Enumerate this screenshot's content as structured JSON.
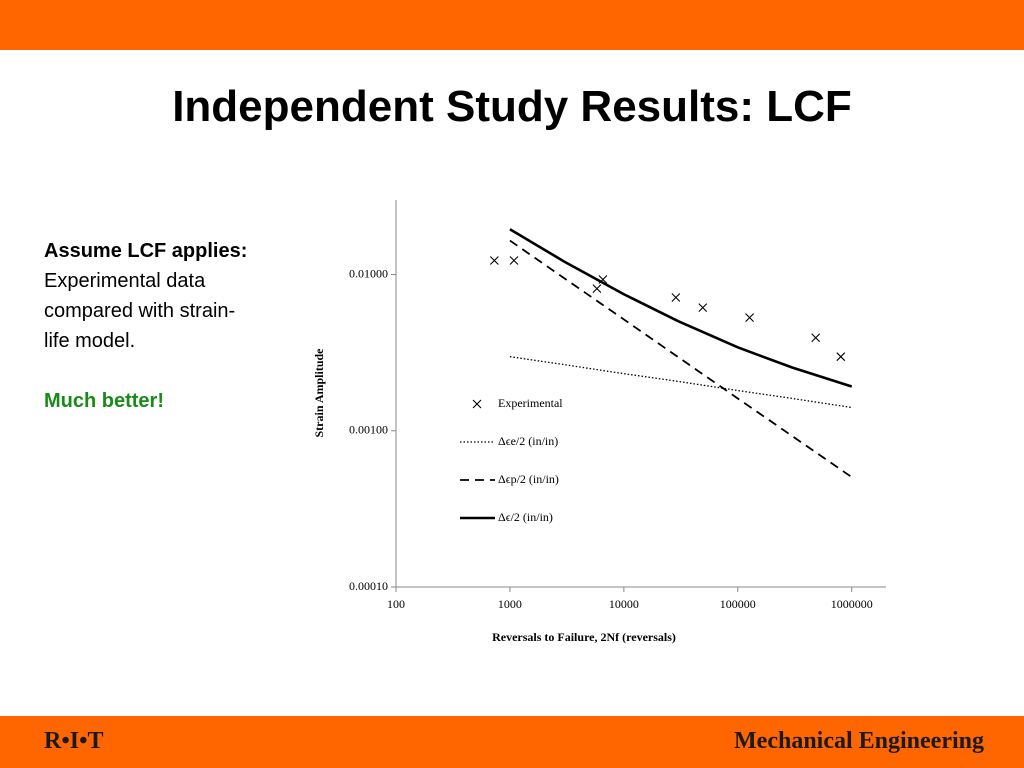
{
  "slide": {
    "title": "Independent Study Results: LCF",
    "note_heading": "Assume LCF applies:",
    "note_body": "Experimental data compared with strain-life model.",
    "note_conclusion": "Much better!",
    "footer_left": "R•I•T",
    "footer_right": "Mechanical Engineering"
  },
  "chart_data": {
    "type": "line",
    "xlabel": "Reversals to Failure, 2Nf (reversals)",
    "ylabel": "Strain Amplitude",
    "xscale": "log",
    "yscale": "log",
    "xlim": [
      100,
      2000000
    ],
    "xticks": [
      100,
      1000,
      10000,
      100000,
      1000000
    ],
    "ylim": [
      0.0001,
      0.03
    ],
    "yticks": [
      {
        "value": 0.0001,
        "label": "0.00010"
      },
      {
        "value": 0.001,
        "label": "0.00100"
      },
      {
        "value": 0.01,
        "label": "0.01000"
      }
    ],
    "legend": "center",
    "series": [
      {
        "name": "Experimental",
        "mode": "markers",
        "color": "#000000",
        "x": [
          730,
          1085,
          5800,
          6550,
          28600,
          49300,
          127000,
          483000,
          802000
        ],
        "values": [
          0.0123,
          0.0123,
          0.00813,
          0.0093,
          0.00713,
          0.00614,
          0.0053,
          0.00394,
          0.00298
        ]
      },
      {
        "name": "Δϵe/2 (in/in)",
        "mode": "line",
        "dash": "dotted",
        "color": "#000000",
        "x": [
          1000,
          3000,
          10000,
          30000,
          100000,
          300000,
          1000000
        ],
        "values": [
          0.00298,
          0.00265,
          0.00232,
          0.00207,
          0.00181,
          0.00161,
          0.00141
        ]
      },
      {
        "name": "Δϵp/2 (in/in)",
        "mode": "line",
        "dash": "dashed",
        "color": "#000000",
        "x": [
          1000,
          3000,
          10000,
          30000,
          100000,
          300000,
          1000000
        ],
        "values": [
          0.0165,
          0.00947,
          0.00516,
          0.00296,
          0.00161,
          0.000926,
          0.000505
        ]
      },
      {
        "name": "Δϵ/2 (in/in)",
        "mode": "line",
        "dash": "solid",
        "color": "#000000",
        "x": [
          1000,
          3000,
          10000,
          30000,
          100000,
          300000,
          1000000
        ],
        "values": [
          0.0195,
          0.0121,
          0.00748,
          0.00503,
          0.00342,
          0.00254,
          0.00192
        ]
      }
    ]
  }
}
